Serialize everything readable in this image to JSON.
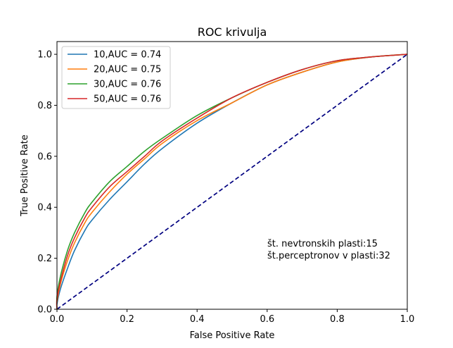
{
  "chart_data": {
    "type": "line",
    "title": "ROC krivulja",
    "xlabel": "False Positive Rate",
    "ylabel": "True Positive Rate",
    "xlim": [
      0,
      1
    ],
    "ylim": [
      0,
      1.05
    ],
    "xticks": [
      0.0,
      0.2,
      0.4,
      0.6,
      0.8,
      1.0
    ],
    "yticks": [
      0.0,
      0.2,
      0.4,
      0.6,
      0.8,
      1.0
    ],
    "xtick_labels": [
      "0.0",
      "0.2",
      "0.4",
      "0.6",
      "0.8",
      "1.0"
    ],
    "ytick_labels": [
      "0.0",
      "0.2",
      "0.4",
      "0.6",
      "0.8",
      "1.0"
    ],
    "grid": false,
    "legend_position": "upper-left",
    "annotation_lines": [
      "št. nevtronskih plasti:15",
      "št.perceptronov v plasti:32"
    ],
    "diagonal": {
      "x": [
        0,
        1
      ],
      "y": [
        0,
        1
      ],
      "color": "#000080",
      "style": "dashed"
    },
    "x": [
      0.0,
      0.01,
      0.03,
      0.05,
      0.08,
      0.1,
      0.15,
      0.2,
      0.25,
      0.3,
      0.4,
      0.5,
      0.6,
      0.7,
      0.8,
      0.9,
      1.0
    ],
    "series": [
      {
        "name": "10,AUC = 0.74",
        "color": "#1f77b4",
        "values": [
          0.02,
          0.08,
          0.16,
          0.23,
          0.31,
          0.35,
          0.43,
          0.5,
          0.57,
          0.63,
          0.73,
          0.81,
          0.88,
          0.93,
          0.97,
          0.99,
          1.0
        ]
      },
      {
        "name": "20,AUC = 0.75",
        "color": "#ff7f0e",
        "values": [
          0.03,
          0.1,
          0.19,
          0.26,
          0.34,
          0.38,
          0.46,
          0.53,
          0.59,
          0.65,
          0.74,
          0.81,
          0.88,
          0.93,
          0.97,
          0.99,
          1.0
        ]
      },
      {
        "name": "30,AUC = 0.76",
        "color": "#2ca02c",
        "values": [
          0.05,
          0.13,
          0.23,
          0.3,
          0.38,
          0.42,
          0.5,
          0.56,
          0.62,
          0.67,
          0.76,
          0.83,
          0.89,
          0.94,
          0.975,
          0.99,
          1.0
        ]
      },
      {
        "name": "50,AUC = 0.76",
        "color": "#d62728",
        "values": [
          0.04,
          0.11,
          0.21,
          0.28,
          0.36,
          0.4,
          0.48,
          0.54,
          0.6,
          0.66,
          0.75,
          0.83,
          0.89,
          0.94,
          0.975,
          0.99,
          1.0
        ]
      }
    ]
  }
}
